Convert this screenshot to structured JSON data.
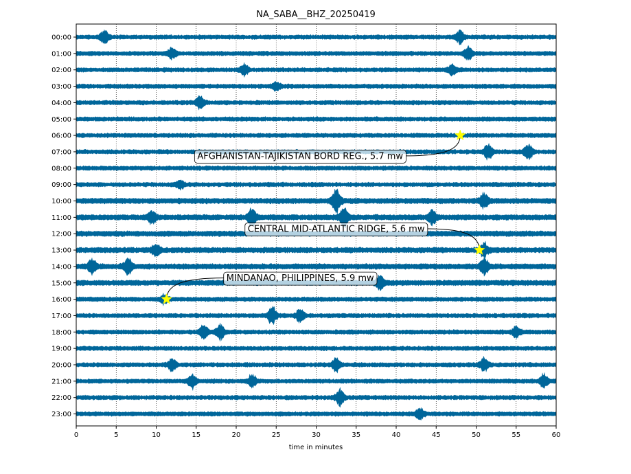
{
  "chart_data": {
    "type": "line",
    "title": "NA_SABA__BHZ_20250419",
    "xlabel": "time in minutes",
    "ylabel": "",
    "xlim": [
      0,
      60
    ],
    "x_ticks": [
      0,
      5,
      10,
      15,
      20,
      25,
      30,
      35,
      40,
      45,
      50,
      55,
      60
    ],
    "rows": [
      "00:00",
      "01:00",
      "02:00",
      "03:00",
      "04:00",
      "05:00",
      "06:00",
      "07:00",
      "08:00",
      "09:00",
      "10:00",
      "11:00",
      "12:00",
      "13:00",
      "14:00",
      "15:00",
      "16:00",
      "17:00",
      "18:00",
      "19:00",
      "20:00",
      "21:00",
      "22:00",
      "23:00"
    ],
    "trace_color": "#00669a",
    "grid": "vertical dotted",
    "bursts": [
      {
        "row": 0,
        "minute": 3.5,
        "amp": 2.0
      },
      {
        "row": 0,
        "minute": 48.0,
        "amp": 2.2
      },
      {
        "row": 1,
        "minute": 12.0,
        "amp": 1.8
      },
      {
        "row": 1,
        "minute": 49.0,
        "amp": 2.0
      },
      {
        "row": 2,
        "minute": 21.0,
        "amp": 1.6
      },
      {
        "row": 2,
        "minute": 47.0,
        "amp": 1.6
      },
      {
        "row": 3,
        "minute": 25.0,
        "amp": 1.5
      },
      {
        "row": 4,
        "minute": 15.5,
        "amp": 2.0
      },
      {
        "row": 7,
        "minute": 51.5,
        "amp": 2.6
      },
      {
        "row": 7,
        "minute": 56.5,
        "amp": 2.8
      },
      {
        "row": 9,
        "minute": 13.0,
        "amp": 1.5
      },
      {
        "row": 10,
        "minute": 32.5,
        "amp": 3.8
      },
      {
        "row": 10,
        "minute": 51.0,
        "amp": 2.2
      },
      {
        "row": 11,
        "minute": 9.5,
        "amp": 2.0
      },
      {
        "row": 11,
        "minute": 22.0,
        "amp": 2.8
      },
      {
        "row": 11,
        "minute": 33.5,
        "amp": 3.6
      },
      {
        "row": 11,
        "minute": 44.5,
        "amp": 2.2
      },
      {
        "row": 13,
        "minute": 10.0,
        "amp": 2.0
      },
      {
        "row": 13,
        "minute": 51.0,
        "amp": 2.2
      },
      {
        "row": 14,
        "minute": 2.0,
        "amp": 2.4
      },
      {
        "row": 14,
        "minute": 6.5,
        "amp": 2.6
      },
      {
        "row": 14,
        "minute": 51.0,
        "amp": 2.6
      },
      {
        "row": 15,
        "minute": 38.0,
        "amp": 2.4
      },
      {
        "row": 16,
        "minute": 11.0,
        "amp": 1.5
      },
      {
        "row": 17,
        "minute": 24.5,
        "amp": 3.0
      },
      {
        "row": 17,
        "minute": 28.0,
        "amp": 2.2
      },
      {
        "row": 18,
        "minute": 16.0,
        "amp": 2.4
      },
      {
        "row": 18,
        "minute": 18.0,
        "amp": 2.6
      },
      {
        "row": 18,
        "minute": 55.0,
        "amp": 1.8
      },
      {
        "row": 20,
        "minute": 12.0,
        "amp": 2.0
      },
      {
        "row": 20,
        "minute": 32.5,
        "amp": 2.2
      },
      {
        "row": 20,
        "minute": 51.0,
        "amp": 2.2
      },
      {
        "row": 21,
        "minute": 14.5,
        "amp": 2.2
      },
      {
        "row": 21,
        "minute": 22.0,
        "amp": 2.2
      },
      {
        "row": 21,
        "minute": 58.5,
        "amp": 2.2
      },
      {
        "row": 22,
        "minute": 33.0,
        "amp": 2.6
      },
      {
        "row": 23,
        "minute": 43.0,
        "amp": 2.0
      }
    ],
    "events": [
      {
        "label": "AFGHANISTAN-TAJIKISTAN BORD REG., 5.7 mw",
        "row": 6,
        "minute": 48.0,
        "label_row": 7.25,
        "label_minute": 28.0
      },
      {
        "label": "CENTRAL MID-ATLANTIC RIDGE, 5.6 mw",
        "row": 13,
        "minute": 50.4,
        "label_row": 11.7,
        "label_minute": 32.5
      },
      {
        "label": "MINDANAO, PHILIPPINES, 5.9 mw",
        "row": 16,
        "minute": 11.3,
        "label_row": 14.7,
        "label_minute": 28.0
      }
    ],
    "star_color": "#ffff00"
  }
}
